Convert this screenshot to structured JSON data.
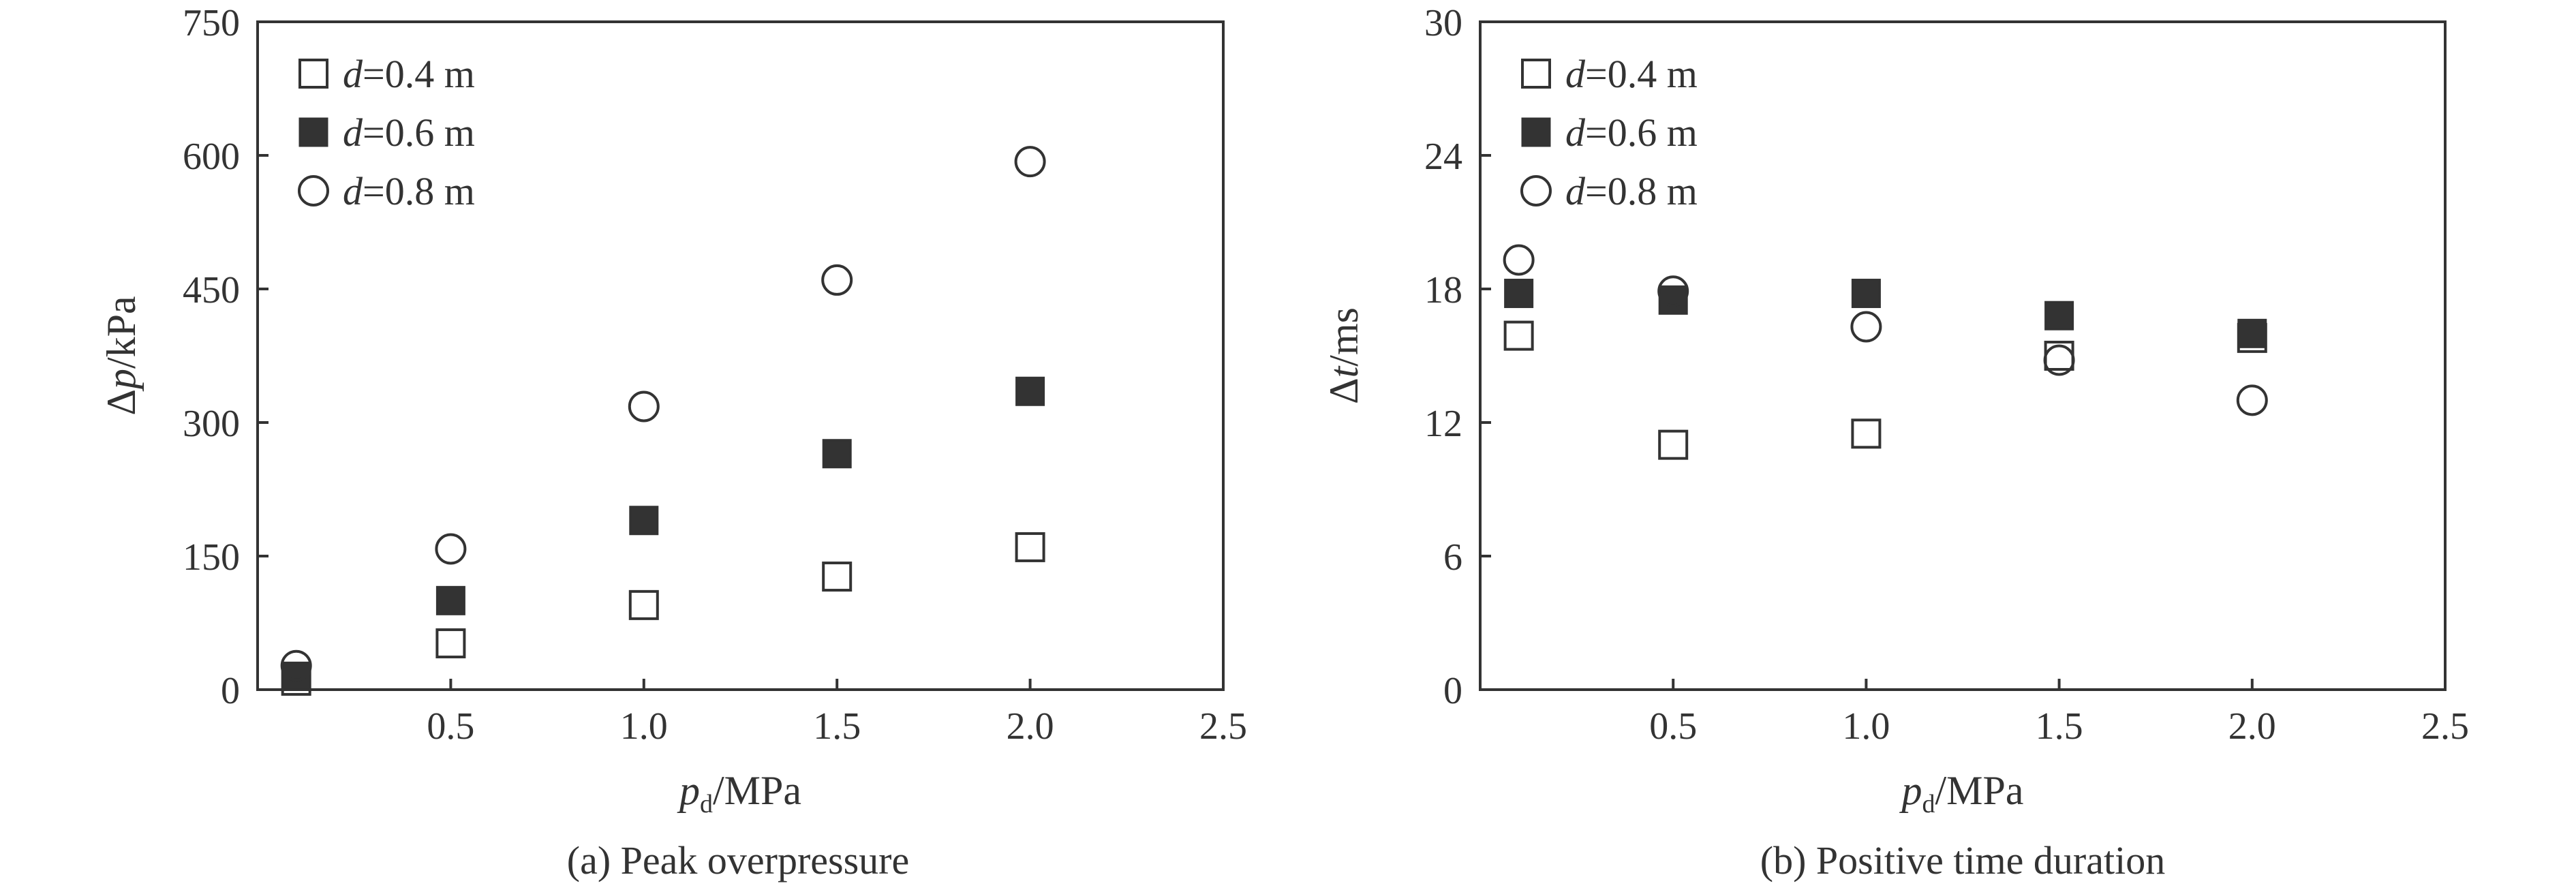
{
  "figure": {
    "captions": [
      "(a) Peak overpressure",
      "(b) Positive time duration"
    ]
  },
  "chart_data": [
    {
      "type": "scatter",
      "title": "",
      "caption": "(a) Peak overpressure",
      "xlabel": {
        "main": "p",
        "sub": "d",
        "unit": "/MPa"
      },
      "ylabel": {
        "main": "Δp",
        "unit": "/kPa"
      },
      "xlim": [
        0,
        2.5
      ],
      "ylim": [
        0,
        750
      ],
      "xticks": [
        0.5,
        1.0,
        1.5,
        2.0,
        2.5
      ],
      "xtick_labels": [
        "0.5",
        "1.0",
        "1.5",
        "2.0",
        "2.5"
      ],
      "yticks": [
        0,
        150,
        300,
        450,
        600,
        750
      ],
      "ytick_labels": [
        "0",
        "150",
        "300",
        "450",
        "600",
        "750"
      ],
      "grid": false,
      "legend_position": "top-left",
      "series": [
        {
          "name": "d=0.4 m",
          "label_var": "d",
          "label_rest": "=0.4 m",
          "marker": "open-square",
          "x": [
            0.1,
            0.5,
            1.0,
            1.5,
            2.0
          ],
          "y": [
            10,
            52,
            95,
            127,
            160
          ]
        },
        {
          "name": "d=0.6 m",
          "label_var": "d",
          "label_rest": "=0.6 m",
          "marker": "filled-square",
          "x": [
            0.1,
            0.5,
            1.0,
            1.5,
            2.0
          ],
          "y": [
            15,
            100,
            190,
            265,
            335
          ]
        },
        {
          "name": "d=0.8 m",
          "label_var": "d",
          "label_rest": "=0.8 m",
          "marker": "open-circle",
          "x": [
            0.1,
            0.5,
            1.0,
            1.5,
            2.0
          ],
          "y": [
            27,
            158,
            318,
            460,
            593
          ]
        }
      ]
    },
    {
      "type": "scatter",
      "title": "",
      "caption": "(b) Positive time duration",
      "xlabel": {
        "main": "p",
        "sub": "d",
        "unit": "/MPa"
      },
      "ylabel": {
        "main": "Δt",
        "unit": "/ms"
      },
      "xlim": [
        0,
        2.5
      ],
      "ylim": [
        0,
        30
      ],
      "xticks": [
        0.5,
        1.0,
        1.5,
        2.0,
        2.5
      ],
      "xtick_labels": [
        "0.5",
        "1.0",
        "1.5",
        "2.0",
        "2.5"
      ],
      "yticks": [
        0,
        6,
        12,
        18,
        24,
        30
      ],
      "ytick_labels": [
        "0",
        "6",
        "12",
        "18",
        "24",
        "30"
      ],
      "grid": false,
      "legend_position": "top-left",
      "series": [
        {
          "name": "d=0.4 m",
          "label_var": "d",
          "label_rest": "=0.4 m",
          "marker": "open-square",
          "x": [
            0.1,
            0.5,
            1.0,
            1.5,
            2.0
          ],
          "y": [
            15.9,
            11.0,
            11.5,
            15.0,
            15.8
          ]
        },
        {
          "name": "d=0.6 m",
          "label_var": "d",
          "label_rest": "=0.6 m",
          "marker": "filled-square",
          "x": [
            0.1,
            0.5,
            1.0,
            1.5,
            2.0
          ],
          "y": [
            17.8,
            17.5,
            17.8,
            16.8,
            16.0
          ]
        },
        {
          "name": "d=0.8 m",
          "label_var": "d",
          "label_rest": "=0.8 m",
          "marker": "open-circle",
          "x": [
            0.1,
            0.5,
            1.0,
            1.5,
            2.0
          ],
          "y": [
            19.3,
            17.9,
            16.3,
            14.8,
            13.0
          ]
        }
      ]
    }
  ]
}
